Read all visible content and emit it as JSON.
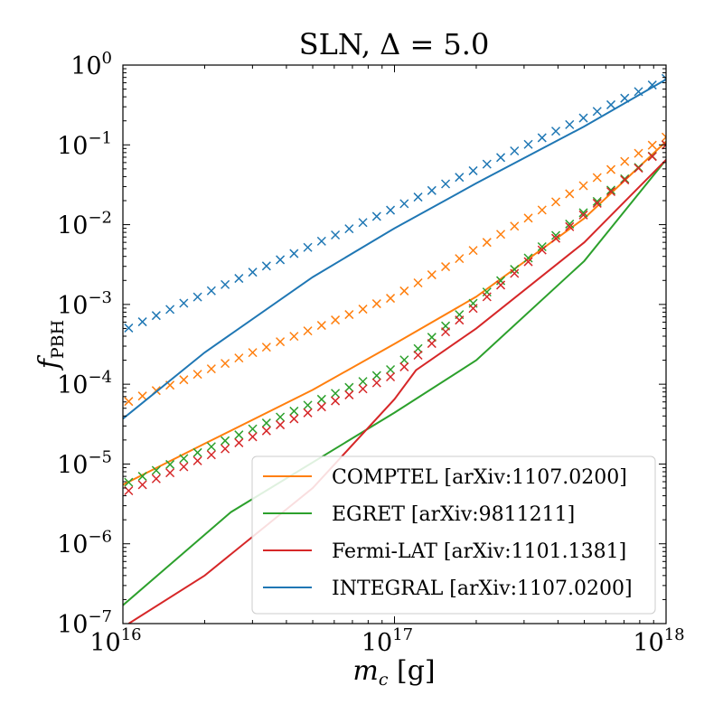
{
  "chart_data": {
    "type": "line",
    "title": "SLN, Δ = 5.0",
    "xlabel": "m_c [g]",
    "ylabel": "f_PBH",
    "x_scale": "log",
    "y_scale": "log",
    "xlim": [
      1e+16,
      1e+18
    ],
    "ylim": [
      1e-07,
      1
    ],
    "x_ticks": [
      {
        "base": "10",
        "exp": "16",
        "value": 1e+16
      },
      {
        "base": "10",
        "exp": "17",
        "value": 1e+17
      },
      {
        "base": "10",
        "exp": "18",
        "value": 1e+18
      }
    ],
    "y_ticks": [
      {
        "base": "10",
        "exp": "0",
        "value": 1
      },
      {
        "base": "10",
        "exp": "−1",
        "value": 0.1
      },
      {
        "base": "10",
        "exp": "−2",
        "value": 0.01
      },
      {
        "base": "10",
        "exp": "−3",
        "value": 0.001
      },
      {
        "base": "10",
        "exp": "−4",
        "value": 0.0001
      },
      {
        "base": "10",
        "exp": "−5",
        "value": 1e-05
      },
      {
        "base": "10",
        "exp": "−6",
        "value": 1e-06
      },
      {
        "base": "10",
        "exp": "−7",
        "value": 1e-07
      }
    ],
    "grid": false,
    "legend_position": "bottom-right",
    "series": [
      {
        "name": "COMPTEL",
        "ref": "[arXiv:1107.0200]",
        "color": "#ff7f0e",
        "line": {
          "x": [
            1e+16,
            2e+16,
            5e+16,
            1e+17,
            2e+17,
            5e+17,
            1e+18
          ],
          "y": [
            5.5e-06,
            1.8e-05,
            8.5e-05,
            0.00032,
            0.00125,
            0.012,
            0.11
          ]
        },
        "markers": {
          "x_start": 1.05e+16,
          "x_end": 1e+18,
          "count": 40,
          "y_anchors_x": [
            1e+16,
            1e+17,
            1e+18
          ],
          "y_anchors": [
            5.7e-05,
            0.00125,
            0.125
          ]
        }
      },
      {
        "name": "EGRET",
        "ref": "[arXiv:9811211]",
        "color": "#2ca02c",
        "line": {
          "x": [
            1e+16,
            2.5e+16,
            1e+17,
            2e+17,
            5e+17,
            1e+18
          ],
          "y": [
            1.7e-07,
            2.5e-06,
            4.4e-05,
            0.0002,
            0.0035,
            0.065
          ],
          "note_line": null
        },
        "markers": {
          "x_start": 1.05e+16,
          "x_end": 1e+18,
          "count": 40,
          "y_anchors_x": [
            1e+16,
            1e+17,
            1e+18
          ],
          "y_anchors": [
            5.5e-06,
            0.00016,
            0.1
          ]
        }
      },
      {
        "name": "Fermi-LAT",
        "ref": "[arXiv:1101.1381]",
        "color": "#d62728",
        "line": {
          "x": [
            1.05e+16,
            2e+16,
            5e+16,
            1e+17,
            1.2e+17,
            2e+17,
            5e+17,
            1e+18
          ],
          "y": [
            1e-07,
            4e-07,
            5e-06,
            6.5e-05,
            0.00015,
            0.0005,
            0.006,
            0.065
          ]
        },
        "markers": {
          "x_start": 1.05e+16,
          "x_end": 1e+18,
          "count": 40,
          "y_anchors_x": [
            1e+16,
            1e+17,
            1e+18
          ],
          "y_anchors": [
            4.3e-06,
            0.00013,
            0.1
          ]
        }
      },
      {
        "name": "INTEGRAL",
        "ref": "[arXiv:1107.0200]",
        "color": "#1f77b4",
        "line": {
          "x": [
            1e+16,
            2e+16,
            5e+16,
            1e+17,
            2e+17,
            5e+17,
            1e+18
          ],
          "y": [
            3.7e-05,
            0.00025,
            0.0022,
            0.009,
            0.033,
            0.17,
            0.66
          ]
        },
        "markers": {
          "x_start": 1.05e+16,
          "x_end": 1e+18,
          "count": 40,
          "y_anchors_x": [
            1e+16,
            1e+17,
            1e+18
          ],
          "y_anchors": [
            0.00047,
            0.016,
            0.68
          ]
        }
      }
    ]
  }
}
